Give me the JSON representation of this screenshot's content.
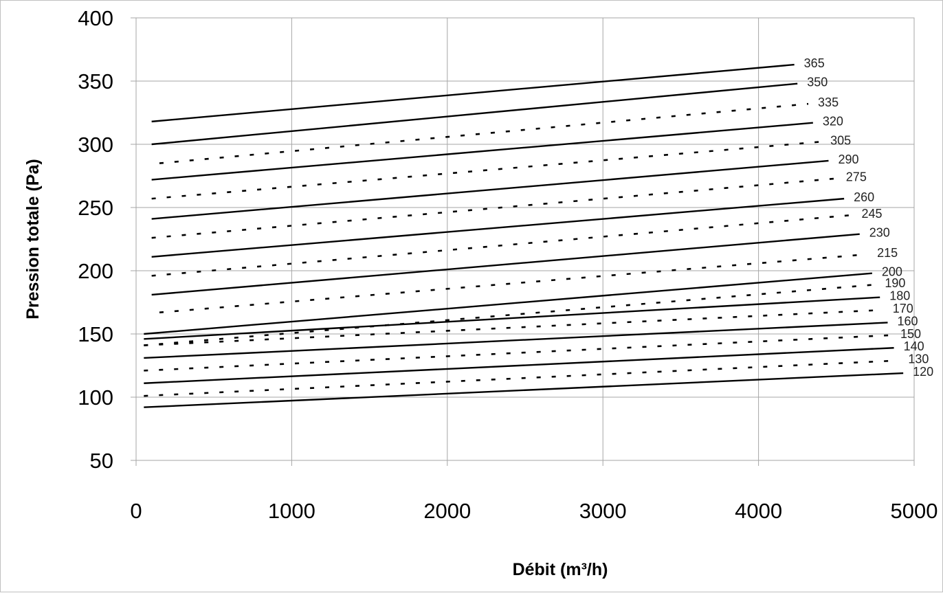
{
  "chart_data": {
    "type": "line",
    "title": "",
    "xlabel": "Débit (m³/h)",
    "ylabel": "Pression totale (Pa)",
    "xlim": [
      0,
      5000
    ],
    "ylim": [
      50,
      400
    ],
    "xticks": [
      "0",
      "1000",
      "2000",
      "3000",
      "4000",
      "5000"
    ],
    "yticks": [
      "50",
      "100",
      "150",
      "200",
      "250",
      "300",
      "350",
      "400"
    ],
    "grid": true,
    "legend": "none",
    "colors": {
      "line": "#000000",
      "grid": "#a6a6a6",
      "frame": "#bfbfbf"
    },
    "series": [
      {
        "name": "365",
        "style": "solid",
        "x": [
          100,
          4230
        ],
        "y": [
          318,
          363
        ]
      },
      {
        "name": "350",
        "style": "solid",
        "x": [
          100,
          4250
        ],
        "y": [
          300,
          348
        ]
      },
      {
        "name": "335",
        "style": "dotted",
        "x": [
          150,
          4320
        ],
        "y": [
          285,
          332
        ]
      },
      {
        "name": "320",
        "style": "solid",
        "x": [
          100,
          4350
        ],
        "y": [
          272,
          317
        ]
      },
      {
        "name": "305",
        "style": "dotted",
        "x": [
          100,
          4400
        ],
        "y": [
          257,
          302
        ]
      },
      {
        "name": "290",
        "style": "solid",
        "x": [
          100,
          4450
        ],
        "y": [
          241,
          287
        ]
      },
      {
        "name": "275",
        "style": "dotted",
        "x": [
          100,
          4500
        ],
        "y": [
          226,
          273
        ]
      },
      {
        "name": "260",
        "style": "solid",
        "x": [
          100,
          4550
        ],
        "y": [
          211,
          257
        ]
      },
      {
        "name": "245",
        "style": "dotted",
        "x": [
          100,
          4600
        ],
        "y": [
          196,
          244
        ]
      },
      {
        "name": "230",
        "style": "solid",
        "x": [
          100,
          4650
        ],
        "y": [
          181,
          229
        ]
      },
      {
        "name": "215",
        "style": "dotted",
        "x": [
          150,
          4700
        ],
        "y": [
          167,
          213
        ]
      },
      {
        "name": "200",
        "style": "solid",
        "x": [
          50,
          4730
        ],
        "y": [
          150,
          198
        ]
      },
      {
        "name": "190",
        "style": "dotted",
        "x": [
          50,
          4750
        ],
        "y": [
          141,
          189
        ]
      },
      {
        "name": "180",
        "style": "solid",
        "x": [
          50,
          4780
        ],
        "y": [
          146,
          179
        ]
      },
      {
        "name": "170",
        "style": "dotted",
        "x": [
          50,
          4800
        ],
        "y": [
          141,
          169
        ]
      },
      {
        "name": "160",
        "style": "solid",
        "x": [
          50,
          4830
        ],
        "y": [
          131,
          159
        ]
      },
      {
        "name": "150",
        "style": "dotted",
        "x": [
          50,
          4850
        ],
        "y": [
          121,
          149
        ]
      },
      {
        "name": "140",
        "style": "solid",
        "x": [
          50,
          4870
        ],
        "y": [
          111,
          139
        ]
      },
      {
        "name": "130",
        "style": "dotted",
        "x": [
          50,
          4900
        ],
        "y": [
          101,
          129
        ]
      },
      {
        "name": "120",
        "style": "solid",
        "x": [
          50,
          4930
        ],
        "y": [
          92,
          119
        ]
      }
    ]
  }
}
